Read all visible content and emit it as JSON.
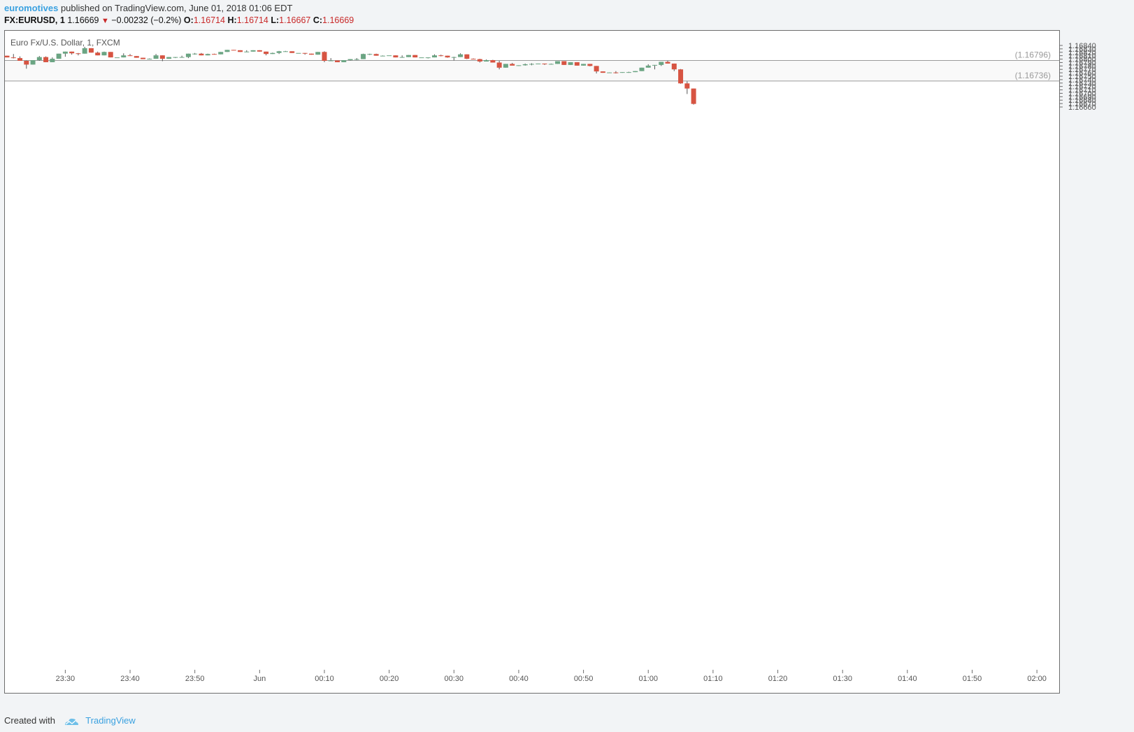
{
  "header": {
    "author": "euromotives",
    "published": "published on TradingView.com, June 01, 2018 01:06 EDT",
    "symbol": "FX:EURUSD, 1",
    "last": "1.16669",
    "change": "−0.00232 (−0.2%)",
    "o_label": "O:",
    "o_value": "1.16714",
    "h_label": "H:",
    "h_value": "1.16714",
    "l_label": "L:",
    "l_value": "1.16667",
    "c_label": "C:",
    "c_value": "1.16669"
  },
  "footer": {
    "created_with": "Created with",
    "brand": "TradingView"
  },
  "colors": {
    "up": "#6ba583",
    "down": "#d75442",
    "zone": "#f9f9f9",
    "line": "#9a9a9a",
    "axis_text": "#555555"
  },
  "chart_data": {
    "type": "candlestick",
    "title": "Euro Fx/U.S. Dollar, 1, FXCM",
    "xlabel": "",
    "ylabel": "",
    "ylim": [
      1.16656,
      1.16845
    ],
    "y_ticks": [
      1.1684,
      1.1683,
      1.1682,
      1.1681,
      1.168,
      1.1679,
      1.1678,
      1.1677,
      1.1676,
      1.1675,
      1.1674,
      1.1673,
      1.1672,
      1.1671,
      1.167,
      1.1669,
      1.1668,
      1.1667,
      1.1666
    ],
    "x_ticks": [
      {
        "label": "23:30",
        "index": 9
      },
      {
        "label": "23:40",
        "index": 19
      },
      {
        "label": "23:50",
        "index": 29
      },
      {
        "label": "Jun",
        "index": 39
      },
      {
        "label": "00:10",
        "index": 49
      },
      {
        "label": "00:20",
        "index": 59
      },
      {
        "label": "00:30",
        "index": 69
      },
      {
        "label": "00:40",
        "index": 79
      },
      {
        "label": "00:50",
        "index": 89
      },
      {
        "label": "01:00",
        "index": 99
      },
      {
        "label": "01:10",
        "index": 109
      },
      {
        "label": "01:20",
        "index": 119
      },
      {
        "label": "01:30",
        "index": 129
      },
      {
        "label": "01:40",
        "index": 139
      },
      {
        "label": "01:50",
        "index": 149
      },
      {
        "label": "02:00",
        "index": 159
      }
    ],
    "levels": [
      {
        "label": "(1.16796)",
        "value": 1.16796
      },
      {
        "label": "(1.16736)",
        "value": 1.16736
      }
    ],
    "candles": [
      [
        1.1681,
        1.1681,
        1.16805,
        1.16805
      ],
      [
        1.16805,
        1.16815,
        1.16802,
        1.16803
      ],
      [
        1.16803,
        1.16808,
        1.16795,
        1.16795
      ],
      [
        1.16795,
        1.16796,
        1.16772,
        1.16784
      ],
      [
        1.16784,
        1.16797,
        1.16784,
        1.16797
      ],
      [
        1.16797,
        1.16809,
        1.16795,
        1.16806
      ],
      [
        1.16806,
        1.16808,
        1.16791,
        1.16791
      ],
      [
        1.16791,
        1.16805,
        1.16791,
        1.16801
      ],
      [
        1.16801,
        1.16816,
        1.16801,
        1.16816
      ],
      [
        1.16816,
        1.16822,
        1.16807,
        1.16822
      ],
      [
        1.16822,
        1.16822,
        1.16813,
        1.16817
      ],
      [
        1.16817,
        1.16818,
        1.16811,
        1.16816
      ],
      [
        1.16816,
        1.16836,
        1.16816,
        1.16832
      ],
      [
        1.16832,
        1.16832,
        1.16819,
        1.16819
      ],
      [
        1.16819,
        1.16822,
        1.16811,
        1.16811
      ],
      [
        1.16811,
        1.16822,
        1.16811,
        1.16821
      ],
      [
        1.16821,
        1.16821,
        1.16805,
        1.16805
      ],
      [
        1.16805,
        1.16805,
        1.16805,
        1.16805
      ],
      [
        1.16805,
        1.16817,
        1.16805,
        1.16811
      ],
      [
        1.16811,
        1.16815,
        1.16809,
        1.16809
      ],
      [
        1.16809,
        1.16809,
        1.16804,
        1.16804
      ],
      [
        1.16804,
        1.16804,
        1.168,
        1.168
      ],
      [
        1.168,
        1.16802,
        1.168,
        1.16801
      ],
      [
        1.16801,
        1.16815,
        1.16801,
        1.16811
      ],
      [
        1.16811,
        1.16811,
        1.16794,
        1.16801
      ],
      [
        1.16801,
        1.16806,
        1.16801,
        1.16806
      ],
      [
        1.16806,
        1.16806,
        1.16803,
        1.16806
      ],
      [
        1.16806,
        1.1681,
        1.16805,
        1.16806
      ],
      [
        1.16806,
        1.16816,
        1.16803,
        1.16816
      ],
      [
        1.16816,
        1.16818,
        1.16813,
        1.16816
      ],
      [
        1.16816,
        1.16818,
        1.16811,
        1.16811
      ],
      [
        1.16811,
        1.16816,
        1.16811,
        1.16815
      ],
      [
        1.16815,
        1.16816,
        1.16814,
        1.16814
      ],
      [
        1.16814,
        1.16821,
        1.16814,
        1.16821
      ],
      [
        1.16821,
        1.16827,
        1.16821,
        1.16827
      ],
      [
        1.16827,
        1.16827,
        1.16826,
        1.16826
      ],
      [
        1.16826,
        1.16826,
        1.16821,
        1.16821
      ],
      [
        1.16821,
        1.16826,
        1.16821,
        1.16822
      ],
      [
        1.16822,
        1.16826,
        1.16822,
        1.16826
      ],
      [
        1.16826,
        1.16826,
        1.16822,
        1.16822
      ],
      [
        1.16822,
        1.16822,
        1.16811,
        1.16815
      ],
      [
        1.16815,
        1.16819,
        1.16815,
        1.16818
      ],
      [
        1.16818,
        1.16824,
        1.16815,
        1.16823
      ],
      [
        1.16823,
        1.16824,
        1.16822,
        1.16823
      ],
      [
        1.16823,
        1.16823,
        1.16818,
        1.16818
      ],
      [
        1.16818,
        1.16818,
        1.16818,
        1.16818
      ],
      [
        1.16818,
        1.16818,
        1.16813,
        1.16816
      ],
      [
        1.16816,
        1.16816,
        1.16813,
        1.16813
      ],
      [
        1.16813,
        1.16821,
        1.16813,
        1.16821
      ],
      [
        1.16821,
        1.16823,
        1.16791,
        1.16795
      ],
      [
        1.16795,
        1.16803,
        1.16796,
        1.16796
      ],
      [
        1.16796,
        1.16796,
        1.16791,
        1.16791
      ],
      [
        1.16791,
        1.16797,
        1.16791,
        1.16797
      ],
      [
        1.16797,
        1.168,
        1.16796,
        1.168
      ],
      [
        1.168,
        1.16803,
        1.16797,
        1.168
      ],
      [
        1.168,
        1.16816,
        1.168,
        1.16815
      ],
      [
        1.16815,
        1.16816,
        1.16812,
        1.16815
      ],
      [
        1.16815,
        1.16816,
        1.1681,
        1.1681
      ],
      [
        1.1681,
        1.16811,
        1.1681,
        1.1681
      ],
      [
        1.1681,
        1.1681,
        1.1681,
        1.16811
      ],
      [
        1.16811,
        1.16811,
        1.16805,
        1.16805
      ],
      [
        1.16805,
        1.16811,
        1.16805,
        1.16806
      ],
      [
        1.16806,
        1.16812,
        1.16806,
        1.16812
      ],
      [
        1.16812,
        1.16812,
        1.16805,
        1.16805
      ],
      [
        1.16805,
        1.16805,
        1.16805,
        1.16805
      ],
      [
        1.16805,
        1.16805,
        1.16802,
        1.16805
      ],
      [
        1.16805,
        1.16814,
        1.16805,
        1.16811
      ],
      [
        1.16811,
        1.16813,
        1.16808,
        1.1681
      ],
      [
        1.1681,
        1.1681,
        1.16804,
        1.16805
      ],
      [
        1.16805,
        1.16807,
        1.16796,
        1.16806
      ],
      [
        1.16806,
        1.16817,
        1.16806,
        1.16814
      ],
      [
        1.16814,
        1.16814,
        1.168,
        1.16801
      ],
      [
        1.16801,
        1.16802,
        1.168,
        1.168
      ],
      [
        1.168,
        1.16801,
        1.1679,
        1.16793
      ],
      [
        1.16793,
        1.16799,
        1.16793,
        1.16797
      ],
      [
        1.16797,
        1.16798,
        1.1679,
        1.1679
      ],
      [
        1.1679,
        1.16795,
        1.1677,
        1.16775
      ],
      [
        1.16775,
        1.16786,
        1.16775,
        1.16786
      ],
      [
        1.16786,
        1.16789,
        1.16782,
        1.16781
      ],
      [
        1.16781,
        1.16782,
        1.1678,
        1.16782
      ],
      [
        1.16782,
        1.16787,
        1.16781,
        1.16785
      ],
      [
        1.16785,
        1.16788,
        1.16782,
        1.16786
      ],
      [
        1.16786,
        1.16787,
        1.16786,
        1.16787
      ],
      [
        1.16787,
        1.16787,
        1.16783,
        1.16785
      ],
      [
        1.16785,
        1.16787,
        1.16785,
        1.16786
      ],
      [
        1.16786,
        1.16794,
        1.16786,
        1.16794
      ],
      [
        1.16794,
        1.16794,
        1.16783,
        1.16783
      ],
      [
        1.16783,
        1.16791,
        1.16783,
        1.16791
      ],
      [
        1.16791,
        1.16791,
        1.16781,
        1.16781
      ],
      [
        1.16781,
        1.16786,
        1.16781,
        1.16786
      ],
      [
        1.16786,
        1.16786,
        1.16779,
        1.1678
      ],
      [
        1.1678,
        1.1678,
        1.16758,
        1.16764
      ],
      [
        1.16764,
        1.16764,
        1.1676,
        1.1676
      ],
      [
        1.1676,
        1.16761,
        1.1676,
        1.16761
      ],
      [
        1.16761,
        1.16765,
        1.16758,
        1.1676
      ],
      [
        1.1676,
        1.16762,
        1.1676,
        1.16762
      ],
      [
        1.16762,
        1.16763,
        1.1676,
        1.16762
      ],
      [
        1.16762,
        1.16765,
        1.16762,
        1.16765
      ],
      [
        1.16765,
        1.16775,
        1.16765,
        1.16775
      ],
      [
        1.16775,
        1.16785,
        1.16775,
        1.16781
      ],
      [
        1.16781,
        1.16783,
        1.1677,
        1.16783
      ],
      [
        1.16783,
        1.16792,
        1.1678,
        1.16792
      ],
      [
        1.16792,
        1.16795,
        1.16787,
        1.16787
      ],
      [
        1.16787,
        1.16787,
        1.16765,
        1.1677
      ],
      [
        1.1677,
        1.16771,
        1.16728,
        1.16729
      ],
      [
        1.16729,
        1.16735,
        1.16698,
        1.16714
      ],
      [
        1.16714,
        1.16714,
        1.16667,
        1.16669
      ]
    ]
  }
}
